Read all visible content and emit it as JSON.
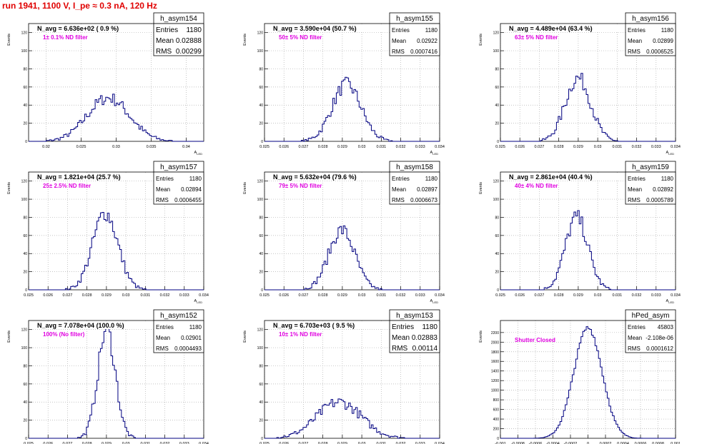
{
  "page_title": "run 1941,  1100 V, I_pe ≈ 0.3 nA, 120 Hz",
  "colors": {
    "title": "#e00000",
    "hist": "#000080",
    "annotation": "#e000e0",
    "grid": "#b0b0b0"
  },
  "common": {
    "ylabel": "Events",
    "xlabel": "A_LED",
    "stats_labels": [
      "Entries",
      "Mean",
      "RMS"
    ]
  },
  "chart_data": [
    {
      "type": "histogram",
      "name": "h_asym154",
      "navg": "N_avg = 6.636e+02 ( 0.9 %)",
      "note": "1± 0.1% ND filter",
      "entries": "1180",
      "mean": "0.02888",
      "rms": "0.00299",
      "xticks": [
        "0.02",
        "0.025",
        "0.03",
        "0.035",
        "0.04"
      ],
      "xlim": [
        0.0175,
        0.0425
      ],
      "yticks": [
        "0",
        "20",
        "40",
        "60",
        "80",
        "100",
        "120"
      ],
      "ylim": [
        0,
        130
      ],
      "peak_counts": 48,
      "mean_value": 0.02888,
      "rms_value": 0.00299
    },
    {
      "type": "histogram",
      "name": "h_asym155",
      "navg": "N_avg = 3.590e+04 (50.7 %)",
      "note": "50± 5% ND filter",
      "entries": "1180",
      "mean": "0.02922",
      "rms": "0.0007416",
      "xticks": [
        "0.025",
        "0.026",
        "0.027",
        "0.028",
        "0.029",
        "0.03",
        "0.031",
        "0.032",
        "0.033",
        "0.034"
      ],
      "xlim": [
        0.025,
        0.034
      ],
      "yticks": [
        "0",
        "20",
        "40",
        "60",
        "80",
        "100",
        "120"
      ],
      "ylim": [
        0,
        130
      ],
      "peak_counts": 63,
      "mean_value": 0.02922,
      "rms_value": 0.0007416
    },
    {
      "type": "histogram",
      "name": "h_asym156",
      "navg": "N_avg = 4.489e+04 (63.4 %)",
      "note": "63± 5% ND filter",
      "entries": "1180",
      "mean": "0.02899",
      "rms": "0.0006525",
      "xticks": [
        "0.025",
        "0.026",
        "0.027",
        "0.028",
        "0.029",
        "0.03",
        "0.031",
        "0.032",
        "0.033",
        "0.034"
      ],
      "xlim": [
        0.025,
        0.034
      ],
      "yticks": [
        "0",
        "20",
        "40",
        "60",
        "80",
        "100",
        "120"
      ],
      "ylim": [
        0,
        130
      ],
      "peak_counts": 70,
      "mean_value": 0.02899,
      "rms_value": 0.0006525
    },
    {
      "type": "histogram",
      "name": "h_asym157",
      "navg": "N_avg = 1.821e+04 (25.7 %)",
      "note": "25± 2.5% ND filter",
      "entries": "1180",
      "mean": "0.02894",
      "rms": "0.0006455",
      "xticks": [
        "0.025",
        "0.026",
        "0.027",
        "0.028",
        "0.029",
        "0.03",
        "0.031",
        "0.032",
        "0.033",
        "0.034"
      ],
      "xlim": [
        0.025,
        0.034
      ],
      "yticks": [
        "0",
        "20",
        "40",
        "60",
        "80",
        "100",
        "120"
      ],
      "ylim": [
        0,
        130
      ],
      "peak_counts": 85,
      "mean_value": 0.02894,
      "rms_value": 0.0006455
    },
    {
      "type": "histogram",
      "name": "h_asym158",
      "navg": "N_avg = 5.632e+04 (79.6 %)",
      "note": "79± 5% ND filter",
      "entries": "1180",
      "mean": "0.02897",
      "rms": "0.0006673",
      "xticks": [
        "0.025",
        "0.026",
        "0.027",
        "0.028",
        "0.029",
        "0.03",
        "0.031",
        "0.032",
        "0.033",
        "0.034"
      ],
      "xlim": [
        0.025,
        0.034
      ],
      "yticks": [
        "0",
        "20",
        "40",
        "60",
        "80",
        "100",
        "120"
      ],
      "ylim": [
        0,
        130
      ],
      "peak_counts": 66,
      "mean_value": 0.02897,
      "rms_value": 0.0006673
    },
    {
      "type": "histogram",
      "name": "h_asym159",
      "navg": "N_avg = 2.861e+04 (40.4 %)",
      "note": "40± 4% ND filter",
      "entries": "1180",
      "mean": "0.02892",
      "rms": "0.0005789",
      "xticks": [
        "0.025",
        "0.026",
        "0.027",
        "0.028",
        "0.029",
        "0.03",
        "0.031",
        "0.032",
        "0.033",
        "0.034"
      ],
      "xlim": [
        0.025,
        0.034
      ],
      "yticks": [
        "0",
        "20",
        "40",
        "60",
        "80",
        "100",
        "120"
      ],
      "ylim": [
        0,
        130
      ],
      "peak_counts": 80,
      "mean_value": 0.02892,
      "rms_value": 0.0005789
    },
    {
      "type": "histogram",
      "name": "h_asym152",
      "navg": "N_avg = 7.078e+04 (100.0 %)",
      "note": "100% (No filter)",
      "entries": "1180",
      "mean": "0.02901",
      "rms": "0.0004493",
      "xticks": [
        "0.025",
        "0.026",
        "0.027",
        "0.028",
        "0.029",
        "0.03",
        "0.031",
        "0.032",
        "0.033",
        "0.034"
      ],
      "xlim": [
        0.025,
        0.034
      ],
      "yticks": [
        "0",
        "20",
        "40",
        "60",
        "80",
        "100",
        "120"
      ],
      "ylim": [
        0,
        130
      ],
      "peak_counts": 120,
      "mean_value": 0.02901,
      "rms_value": 0.0004493
    },
    {
      "type": "histogram",
      "name": "h_asym153",
      "navg": "N_avg = 6.703e+03 ( 9.5 %)",
      "note": "10± 1% ND filter",
      "entries": "1180",
      "mean": "0.02883",
      "rms": "0.00114",
      "xticks": [
        "0.025",
        "0.026",
        "0.027",
        "0.028",
        "0.029",
        "0.03",
        "0.031",
        "0.032",
        "0.033",
        "0.034"
      ],
      "xlim": [
        0.025,
        0.034
      ],
      "yticks": [
        "0",
        "20",
        "40",
        "60",
        "80",
        "100",
        "120"
      ],
      "ylim": [
        0,
        130
      ],
      "peak_counts": 40,
      "mean_value": 0.02883,
      "rms_value": 0.00114
    },
    {
      "type": "histogram",
      "name": "hPed_asym",
      "navg": "",
      "note": "Shutter Closed",
      "entries": "45803",
      "mean": "-2.108e-06",
      "rms": "0.0001612",
      "xticks": [
        "-0.001",
        "-0.0008",
        "-0.0006",
        "-0.0004",
        "-0.0002",
        "0",
        "0.0002",
        "0.0004",
        "0.0006",
        "0.0008",
        "0.001"
      ],
      "xlim": [
        -0.001,
        0.001
      ],
      "yticks": [
        "0",
        "200",
        "400",
        "600",
        "800",
        "1000",
        "1200",
        "1400",
        "1600",
        "1800",
        "2000",
        "2200"
      ],
      "ylim": [
        0,
        2450
      ],
      "peak_counts": 2300,
      "mean_value": 0.0,
      "rms_value": 0.0001612
    }
  ]
}
